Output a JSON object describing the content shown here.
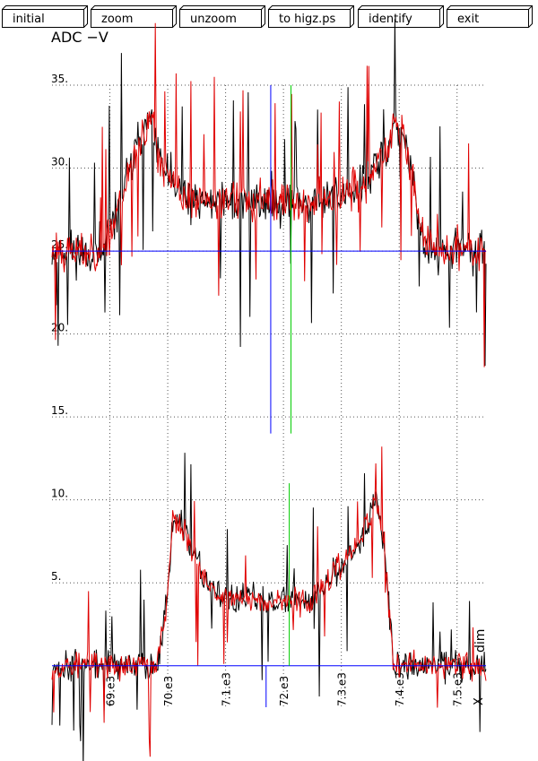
{
  "toolbar": {
    "buttons": [
      {
        "id": "initial",
        "label": "initial"
      },
      {
        "id": "zoom",
        "label": "zoom"
      },
      {
        "id": "unzoom",
        "label": "unzoom"
      },
      {
        "id": "to-higz",
        "label": "to higz.ps"
      },
      {
        "id": "identify",
        "label": "identify"
      },
      {
        "id": "exit",
        "label": "exit"
      }
    ]
  },
  "chart_data": {
    "type": "line",
    "title": "ADC  −V",
    "xlabel": "X",
    "ylabel": "",
    "side_label": "dim",
    "xlim": [
      6850,
      7600
    ],
    "ylim": [
      -2.5,
      35
    ],
    "y_ticks": [
      {
        "value": 35,
        "label": "35."
      },
      {
        "value": 30,
        "label": "30."
      },
      {
        "value": 25,
        "label": "25."
      },
      {
        "value": 20,
        "label": "20."
      },
      {
        "value": 15,
        "label": "15."
      },
      {
        "value": 10,
        "label": "10."
      },
      {
        "value": 5,
        "label": "5."
      }
    ],
    "x_ticks": [
      {
        "value": 6950,
        "label": "69.e3"
      },
      {
        "value": 7050,
        "label": "70.e3"
      },
      {
        "value": 7150,
        "label": "7.1.e3"
      },
      {
        "value": 7250,
        "label": "72.e3"
      },
      {
        "value": 7350,
        "label": "7.3.e3"
      },
      {
        "value": 7450,
        "label": "7.4.e3"
      },
      {
        "value": 7550,
        "label": "7.5.e3"
      }
    ],
    "grid": true,
    "baselines": [
      {
        "name": "upper",
        "value": 25,
        "color": "#0000ff"
      },
      {
        "name": "lower",
        "value": 0,
        "color": "#0000ff"
      }
    ],
    "markers": [
      {
        "x": 7228,
        "y_from": 14,
        "y_to": 35,
        "color": "#0000ff"
      },
      {
        "x": 7263,
        "y_from": 14,
        "y_to": 35,
        "color": "#00cc00"
      },
      {
        "x": 7220,
        "y_from": -2.5,
        "y_to": 0,
        "color": "#0000ff"
      },
      {
        "x": 7260,
        "y_from": 0,
        "y_to": 11,
        "color": "#00cc00"
      }
    ],
    "series": [
      {
        "color": "#000000",
        "profile": [
          [
            6850,
            25
          ],
          [
            6940,
            25
          ],
          [
            6995,
            31
          ],
          [
            7020,
            33
          ],
          [
            7040,
            30
          ],
          [
            7080,
            28
          ],
          [
            7320,
            28
          ],
          [
            7390,
            29
          ],
          [
            7430,
            31
          ],
          [
            7445,
            33
          ],
          [
            7470,
            30
          ],
          [
            7495,
            25
          ],
          [
            7600,
            25
          ]
        ],
        "noise": 1.3,
        "spike": 0.06,
        "spike_amp": 5.5,
        "step": 1.5,
        "seed": 11
      },
      {
        "color": "#e00000",
        "profile": [
          [
            6850,
            25
          ],
          [
            6940,
            25
          ],
          [
            6995,
            31
          ],
          [
            7020,
            33
          ],
          [
            7040,
            30
          ],
          [
            7080,
            28
          ],
          [
            7320,
            28
          ],
          [
            7390,
            29
          ],
          [
            7430,
            31
          ],
          [
            7445,
            33
          ],
          [
            7470,
            30
          ],
          [
            7495,
            25
          ],
          [
            7600,
            25
          ]
        ],
        "noise": 1.2,
        "spike": 0.05,
        "spike_amp": 5.0,
        "step": 1.5,
        "seed": 23
      },
      {
        "color": "#000000",
        "profile": [
          [
            6850,
            0
          ],
          [
            7030,
            0
          ],
          [
            7045,
            3
          ],
          [
            7060,
            9
          ],
          [
            7080,
            8
          ],
          [
            7100,
            6
          ],
          [
            7140,
            4
          ],
          [
            7300,
            4
          ],
          [
            7350,
            6
          ],
          [
            7390,
            8
          ],
          [
            7410,
            10
          ],
          [
            7425,
            7
          ],
          [
            7440,
            0
          ],
          [
            7600,
            0
          ]
        ],
        "noise": 0.9,
        "spike": 0.05,
        "spike_amp": 4.0,
        "step": 1.5,
        "seed": 37
      },
      {
        "color": "#e00000",
        "profile": [
          [
            6850,
            0
          ],
          [
            7030,
            0
          ],
          [
            7045,
            3
          ],
          [
            7060,
            9
          ],
          [
            7080,
            8
          ],
          [
            7100,
            6
          ],
          [
            7140,
            4
          ],
          [
            7300,
            4
          ],
          [
            7350,
            6
          ],
          [
            7390,
            8
          ],
          [
            7410,
            10
          ],
          [
            7425,
            7
          ],
          [
            7440,
            0
          ],
          [
            7600,
            0
          ]
        ],
        "noise": 0.8,
        "spike": 0.05,
        "spike_amp": 3.8,
        "step": 1.5,
        "seed": 53
      }
    ]
  }
}
